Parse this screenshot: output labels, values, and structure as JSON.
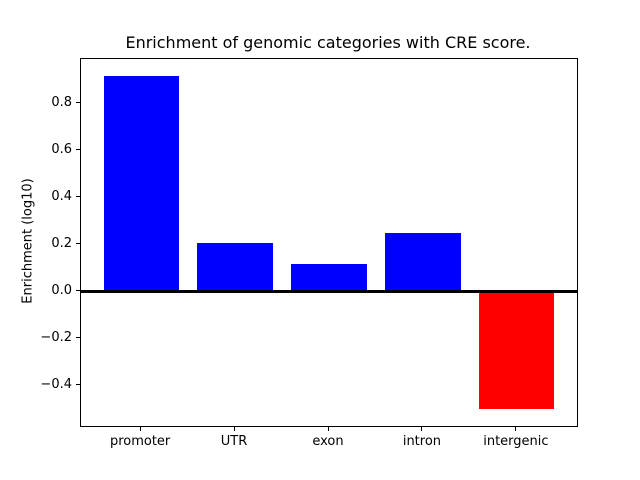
{
  "figure": {
    "title": "Enrichment of genomic categories with CRE score.",
    "ylabel": "Enrichment (log10)"
  },
  "chart_data": {
    "type": "bar",
    "title": "Enrichment of genomic categories with CRE score.",
    "xlabel": "",
    "ylabel": "Enrichment (log10)",
    "categories": [
      "promoter",
      "UTR",
      "exon",
      "intron",
      "intergenic"
    ],
    "values": [
      0.92,
      0.21,
      0.12,
      0.25,
      -0.5
    ],
    "bar_colors": [
      "#0000ff",
      "#0000ff",
      "#0000ff",
      "#0000ff",
      "#ff0000"
    ],
    "positive_color": "#0000ff",
    "negative_color": "#ff0000",
    "bar_width_fraction": 0.8,
    "xlim": [
      -0.64,
      4.64
    ],
    "ylim": [
      -0.571,
      0.991
    ],
    "yticks": [
      0.8,
      0.6,
      0.4,
      0.2,
      0.0,
      -0.2,
      -0.4
    ],
    "ytick_labels": [
      "0.8",
      "0.6",
      "0.4",
      "0.2",
      "0.0",
      "−0.2",
      "−0.4"
    ],
    "zero_line": {
      "y": 0.0,
      "color": "#000000",
      "thickness_px": 3
    },
    "grid": false,
    "legend": null,
    "plot_background": "#ffffff",
    "spine_color": "#000000"
  }
}
